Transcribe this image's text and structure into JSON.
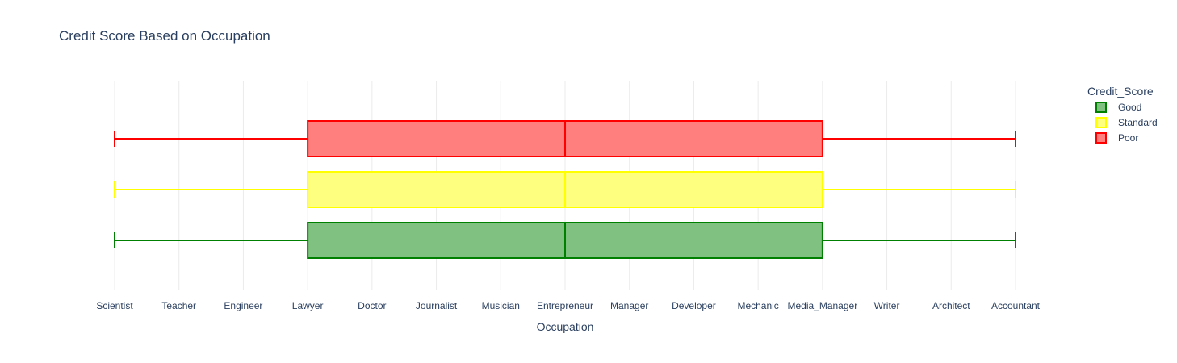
{
  "chart_data": {
    "type": "box",
    "orientation": "horizontal",
    "title": "Credit Score Based on Occupation",
    "xlabel": "Occupation",
    "ylabel": "",
    "categories": [
      "Scientist",
      "Teacher",
      "Engineer",
      "Lawyer",
      "Doctor",
      "Journalist",
      "Musician",
      "Entrepreneur",
      "Manager",
      "Developer",
      "Mechanic",
      "Media_Manager",
      "Writer",
      "Architect",
      "Accountant"
    ],
    "grid": true,
    "legend": {
      "title": "Credit_Score",
      "placement": "top-right"
    },
    "series": [
      {
        "name": "Good",
        "color": "#008000",
        "fill": "#80c080",
        "min": "Scientist",
        "q1": "Lawyer",
        "median": "Entrepreneur",
        "q3": "Media_Manager",
        "max": "Accountant"
      },
      {
        "name": "Standard",
        "color": "#ffff00",
        "fill": "#ffff7f",
        "min": "Scientist",
        "q1": "Lawyer",
        "median": "Entrepreneur",
        "q3": "Media_Manager",
        "max": "Accountant"
      },
      {
        "name": "Poor",
        "color": "#ff0000",
        "fill": "#ff7f7f",
        "min": "Scientist",
        "q1": "Lawyer",
        "median": "Entrepreneur",
        "q3": "Media_Manager",
        "max": "Accountant"
      }
    ]
  }
}
